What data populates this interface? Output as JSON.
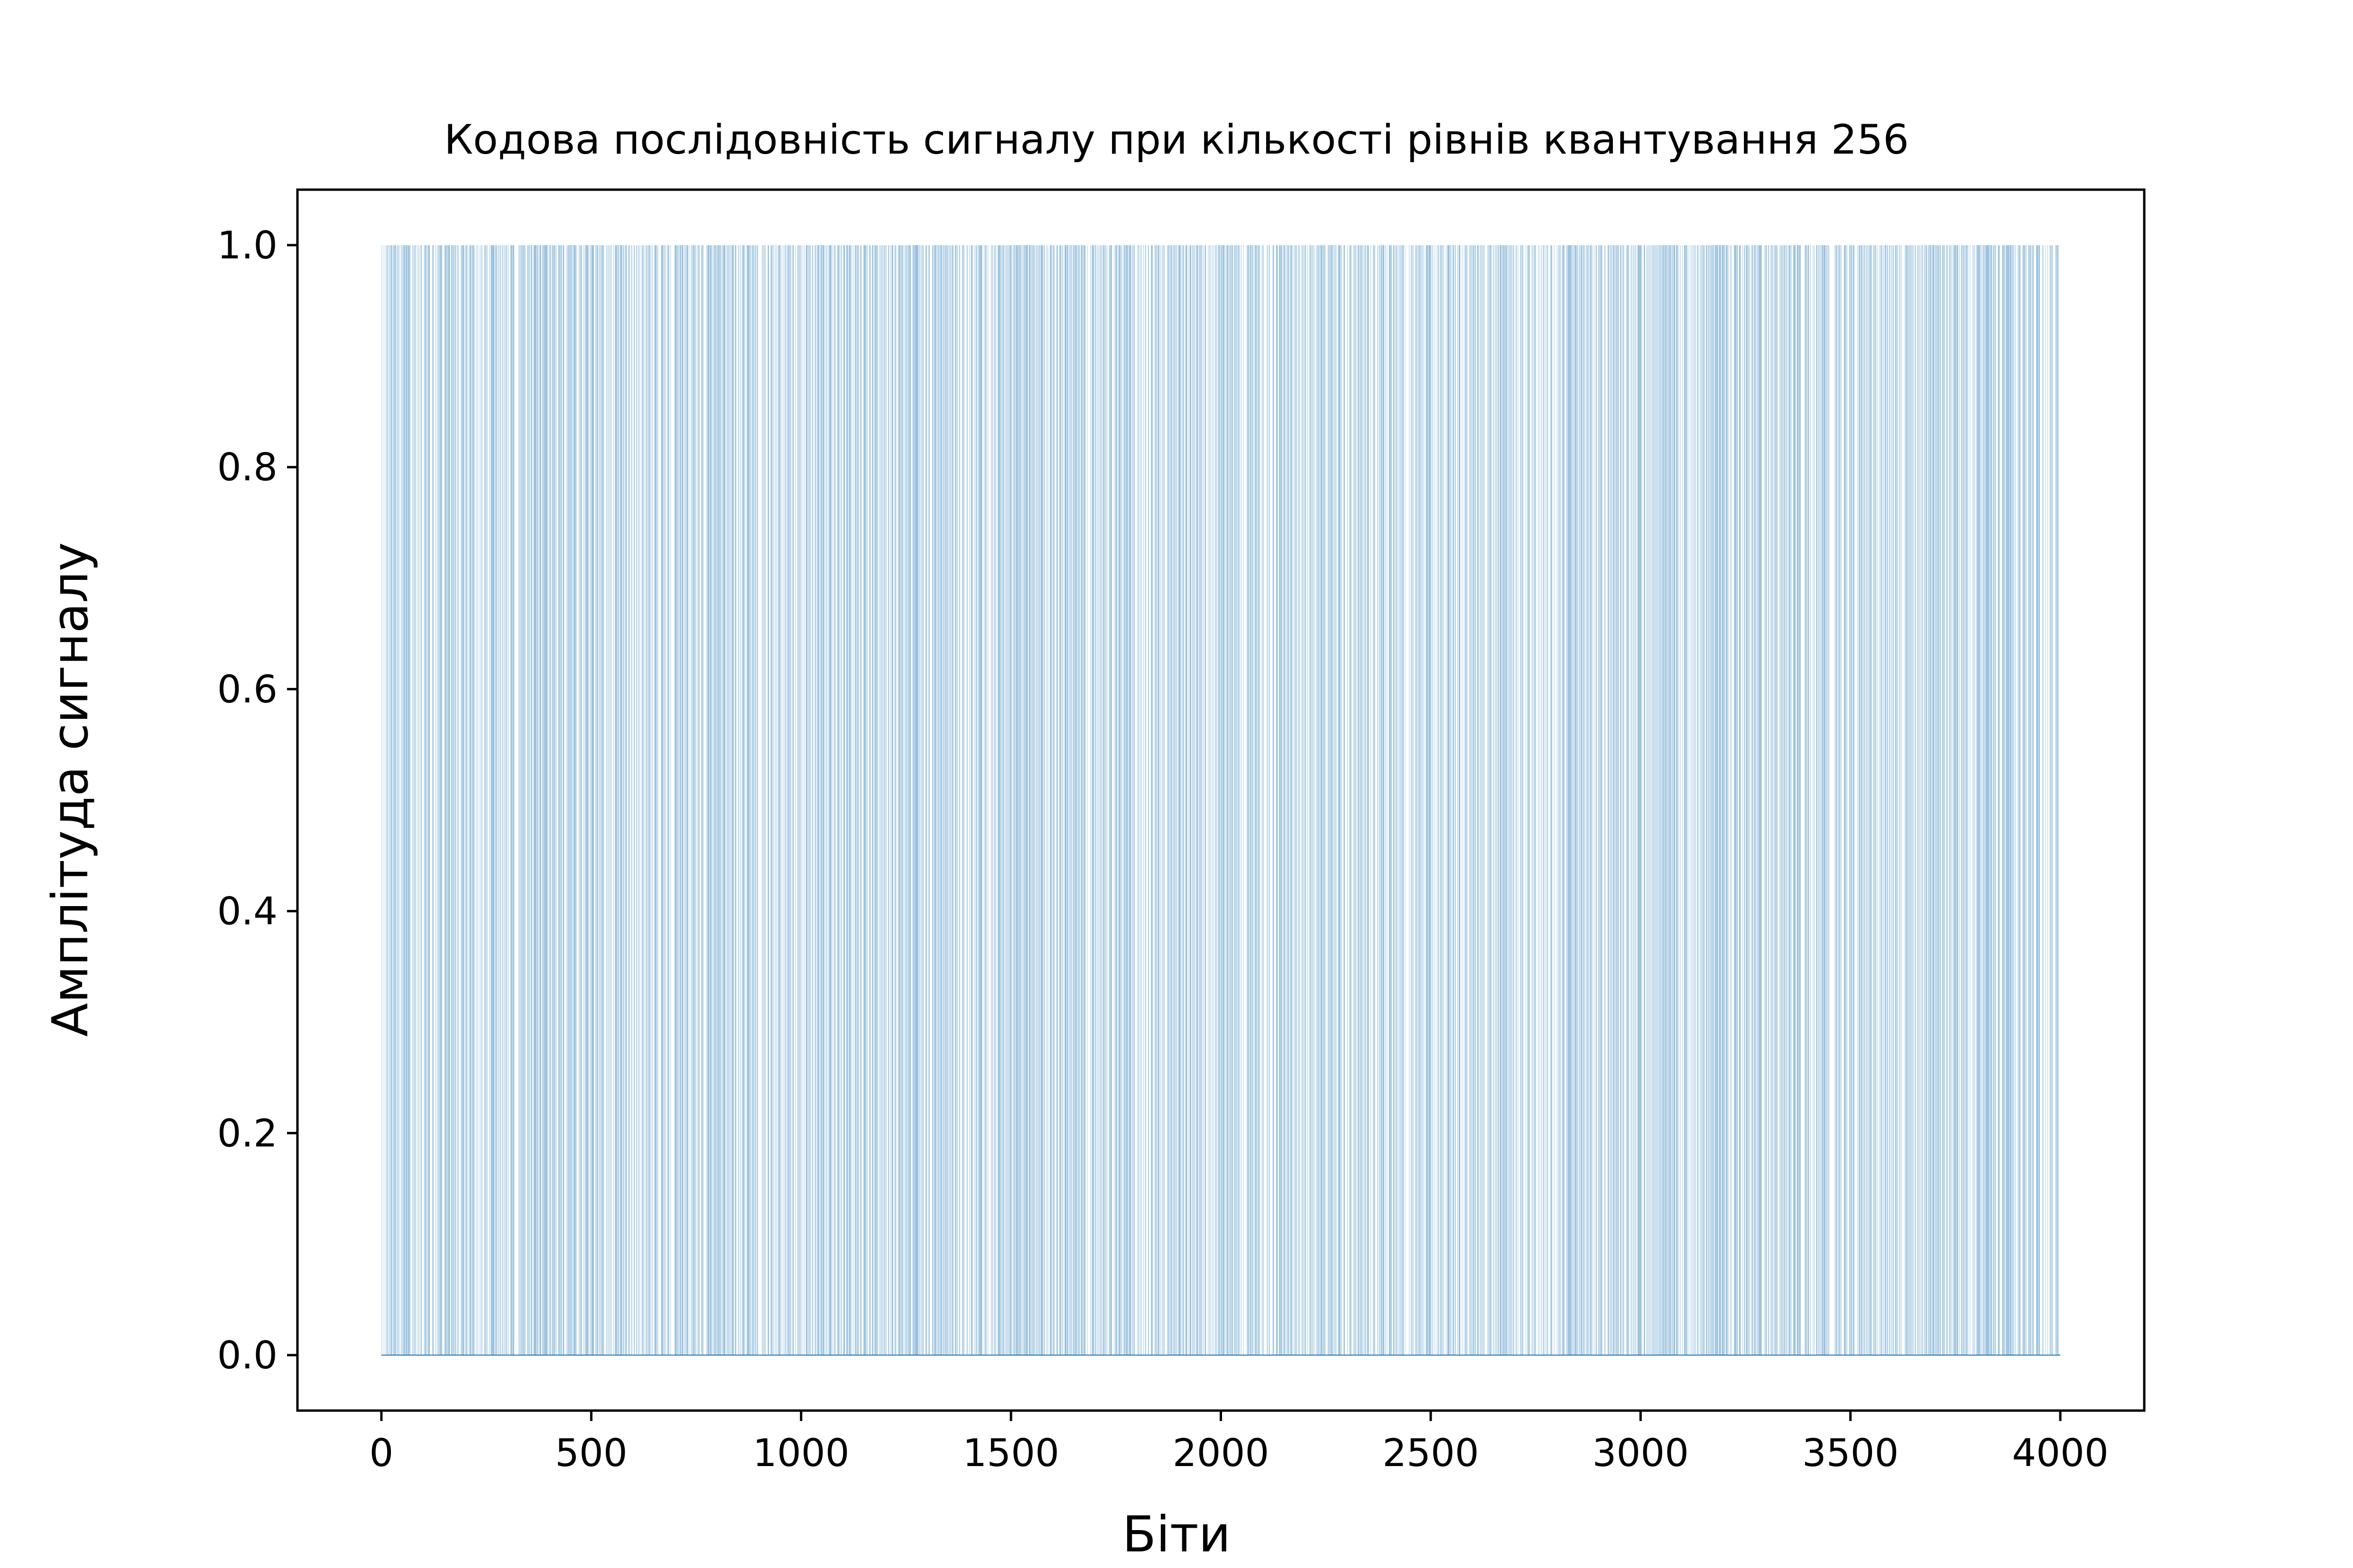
{
  "chart_data": {
    "type": "bar",
    "title": "Кодова послідовність сигналу при кількості рівнів квантування 256",
    "xlabel": "Біти",
    "ylabel": "Амплітуда сигналу",
    "xlim": [
      -200,
      4200
    ],
    "ylim": [
      -0.05,
      1.05
    ],
    "xticks": [
      0,
      500,
      1000,
      1500,
      2000,
      2500,
      3000,
      3500,
      4000
    ],
    "yticks": [
      0.0,
      0.2,
      0.4,
      0.6,
      0.8,
      1.0
    ],
    "xtick_labels": [
      "0",
      "500",
      "1000",
      "1500",
      "2000",
      "2500",
      "3000",
      "3500",
      "4000"
    ],
    "ytick_labels": [
      "0.0",
      "0.2",
      "0.4",
      "0.6",
      "0.8",
      "1.0"
    ],
    "bit_count": 4000,
    "bar_value_one": 1.0,
    "bar_value_zero": 0.0,
    "color": "#1f77b4",
    "grid": false,
    "legend": false
  }
}
